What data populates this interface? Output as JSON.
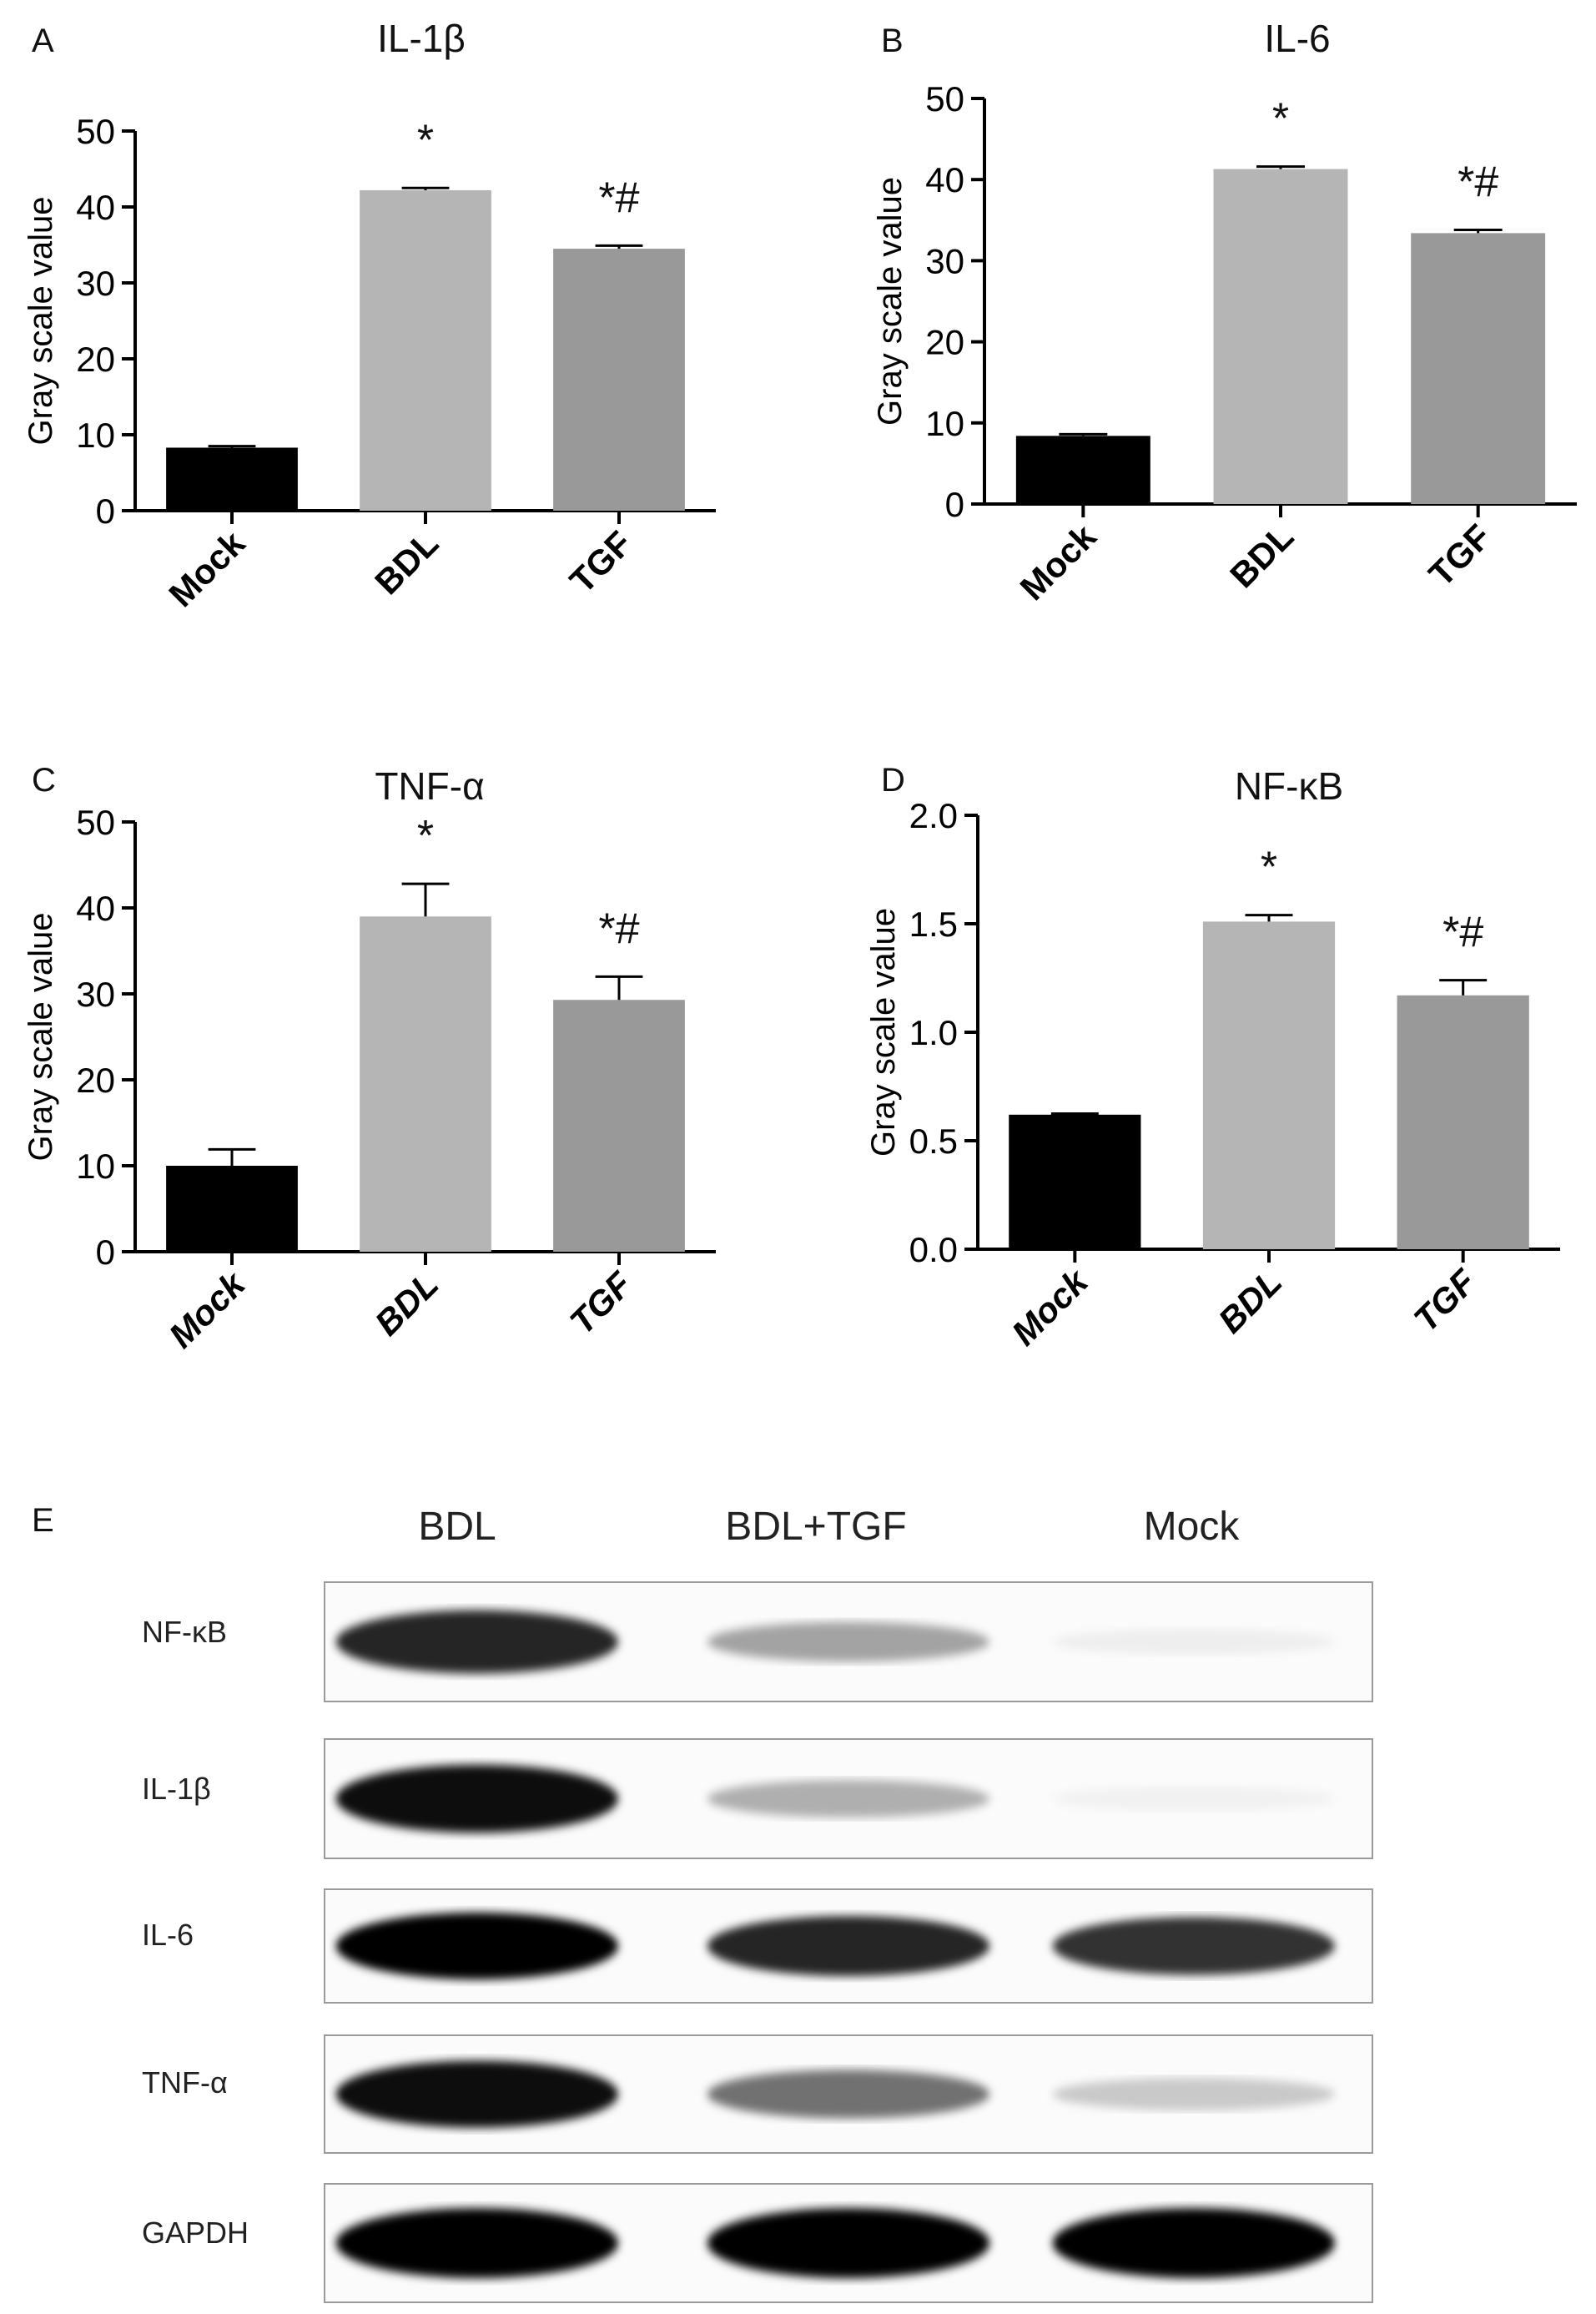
{
  "chart_data": [
    {
      "panel": "A",
      "title": "IL-1β",
      "type": "bar",
      "ylabel": "Gray scale value",
      "ylim": [
        0,
        50
      ],
      "yticks": [
        "0",
        "10",
        "20",
        "30",
        "40",
        "50"
      ],
      "categories": [
        "Mock",
        "BDL",
        "TGF"
      ],
      "values": [
        8.3,
        42.2,
        34.5
      ],
      "errors": [
        0.2,
        0.3,
        0.4
      ],
      "annotations": [
        "",
        "*",
        "*#"
      ],
      "colors": [
        "#000000",
        "#b5b5b5",
        "#999999"
      ],
      "italic_ticks": false
    },
    {
      "panel": "B",
      "title": "IL-6",
      "type": "bar",
      "ylabel": "Gray scale value",
      "ylim": [
        0,
        50
      ],
      "yticks": [
        "0",
        "10",
        "20",
        "30",
        "40",
        "50"
      ],
      "categories": [
        "Mock",
        "BDL",
        "TGF"
      ],
      "values": [
        8.4,
        41.3,
        33.4
      ],
      "errors": [
        0.2,
        0.3,
        0.4
      ],
      "annotations": [
        "",
        "*",
        "*#"
      ],
      "colors": [
        "#000000",
        "#b5b5b5",
        "#999999"
      ],
      "italic_ticks": false
    },
    {
      "panel": "C",
      "title": "TNF-α",
      "type": "bar",
      "ylabel": "Gray scale value",
      "ylim": [
        0,
        50
      ],
      "yticks": [
        "0",
        "10",
        "20",
        "30",
        "40",
        "50"
      ],
      "categories": [
        "Mock",
        "BDL",
        "TGF"
      ],
      "values": [
        10.0,
        39.0,
        29.3
      ],
      "errors": [
        1.9,
        3.8,
        2.7
      ],
      "annotations": [
        "",
        "*",
        "*#"
      ],
      "colors": [
        "#000000",
        "#b5b5b5",
        "#999999"
      ],
      "italic_ticks": true
    },
    {
      "panel": "D",
      "title": "NF-κB",
      "type": "bar",
      "ylabel": "Gray scale value",
      "ylim": [
        0,
        2.0
      ],
      "yticks": [
        "0.0",
        "0.5",
        "1.0",
        "1.5",
        "2.0"
      ],
      "categories": [
        "Mock",
        "BDL",
        "TGF"
      ],
      "values": [
        0.62,
        1.51,
        1.17
      ],
      "errors": [
        0.005,
        0.03,
        0.07
      ],
      "annotations": [
        "",
        "*",
        "*#"
      ],
      "colors": [
        "#000000",
        "#b5b5b5",
        "#999999"
      ],
      "italic_ticks": true
    }
  ],
  "blot": {
    "panel": "E",
    "lanes": [
      "BDL",
      "BDL+TGF",
      "Mock"
    ],
    "rows": [
      {
        "label": "NF-κB",
        "intensity": [
          0.85,
          0.35,
          0.05
        ]
      },
      {
        "label": "IL-1β",
        "intensity": [
          0.95,
          0.3,
          0.03
        ]
      },
      {
        "label": "IL-6",
        "intensity": [
          1.0,
          0.85,
          0.8
        ]
      },
      {
        "label": "TNF-α",
        "intensity": [
          0.95,
          0.55,
          0.2
        ]
      },
      {
        "label": "GAPDH",
        "intensity": [
          1.0,
          1.0,
          1.0
        ]
      }
    ]
  }
}
